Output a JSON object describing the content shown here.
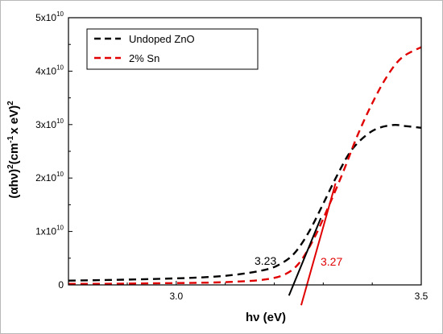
{
  "chart_data": {
    "type": "line",
    "xlabel_base": "hν",
    "xlabel_unit": " (eV)",
    "ylabel": {
      "open": "(αhν)",
      "sup1": "2",
      "mid": "(cm",
      "sup2": "-1",
      "mid2": "x eV)",
      "sup3": "2"
    },
    "xlim": [
      2.78,
      3.5
    ],
    "ylim": [
      0,
      5
    ],
    "x_ticks": [
      {
        "value": 3.0,
        "label": "3.0"
      },
      {
        "value": 3.5,
        "label": "3.5"
      }
    ],
    "y_ticks": [
      {
        "value": 0,
        "label": "0",
        "exp": ""
      },
      {
        "value": 1,
        "label": "1x10",
        "exp": "10"
      },
      {
        "value": 2,
        "label": "2x10",
        "exp": "10"
      },
      {
        "value": 3,
        "label": "3x10",
        "exp": "10"
      },
      {
        "value": 4,
        "label": "4x10",
        "exp": "10"
      },
      {
        "value": 5,
        "label": "5x10",
        "exp": "10"
      }
    ],
    "y_scale_note": "y values in units of 10^10",
    "legend_position": "top-left",
    "series": [
      {
        "name": "Undoped ZnO",
        "color": "#000000",
        "style": "dashed",
        "x": [
          2.78,
          2.85,
          2.95,
          3.05,
          3.12,
          3.18,
          3.21,
          3.24,
          3.27,
          3.3,
          3.33,
          3.36,
          3.4,
          3.44,
          3.47,
          3.5
        ],
        "y": [
          0.08,
          0.09,
          0.11,
          0.14,
          0.19,
          0.28,
          0.38,
          0.58,
          0.98,
          1.52,
          2.08,
          2.55,
          2.88,
          2.99,
          2.97,
          2.94
        ]
      },
      {
        "name": "2% Sn",
        "color": "#e00000",
        "style": "dashed",
        "x": [
          2.78,
          2.85,
          2.95,
          3.05,
          3.12,
          3.18,
          3.22,
          3.25,
          3.28,
          3.31,
          3.34,
          3.37,
          3.4,
          3.43,
          3.46,
          3.5
        ],
        "y": [
          0.02,
          0.02,
          0.03,
          0.04,
          0.06,
          0.1,
          0.19,
          0.4,
          0.85,
          1.45,
          2.1,
          2.8,
          3.4,
          3.9,
          4.25,
          4.45
        ]
      }
    ],
    "fit_lines": [
      {
        "color": "#000000",
        "x": [
          3.23,
          3.295
        ],
        "y": [
          -0.2,
          1.25
        ],
        "label": "3.23"
      },
      {
        "color": "#e00000",
        "x": [
          3.255,
          3.325
        ],
        "y": [
          -0.38,
          1.9
        ],
        "label": "3.27"
      }
    ]
  }
}
